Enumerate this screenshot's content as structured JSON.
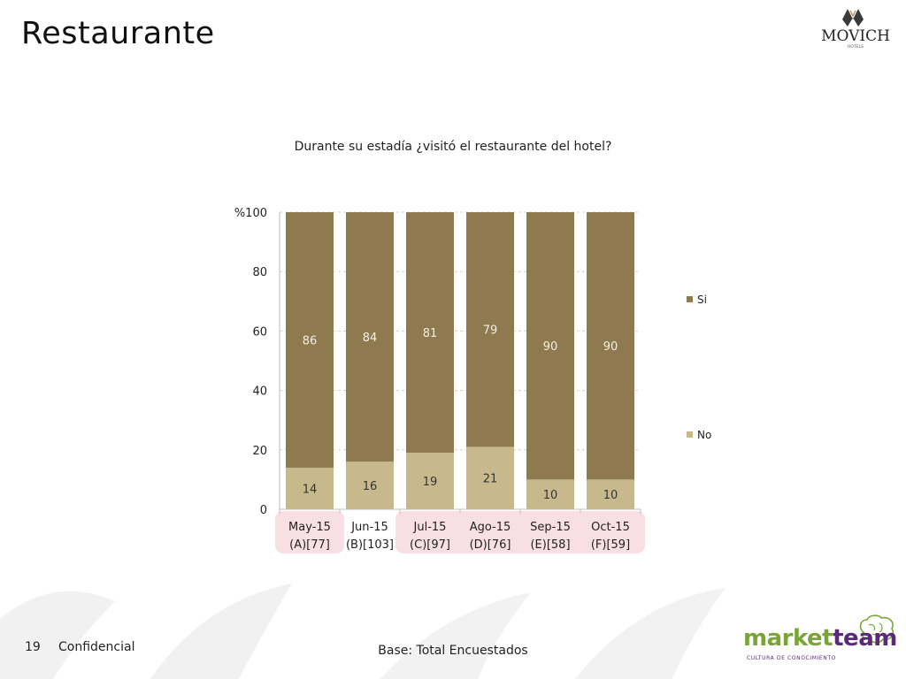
{
  "page": {
    "title": "Restaurante",
    "slide_number": "19",
    "confidential": "Confidencial",
    "base_note": "Base: Total Encuestados"
  },
  "logos": {
    "brand": "MOVICH",
    "brand_sub": "HOTELS",
    "partner_market": "market",
    "partner_team": "team",
    "partner_tagline": "CULTURA DE CONOCIMIENTO"
  },
  "colors": {
    "si": "#8f7a50",
    "no": "#c8b98d",
    "highlight": "#f7dfe4",
    "grid": "#d0d0d0"
  },
  "chart_data": {
    "type": "bar",
    "stacked": true,
    "title": "Durante su estadía ¿visitó el restaurante del hotel?",
    "ylabel": "%",
    "ylim": [
      0,
      100
    ],
    "yticks": [
      0,
      20,
      40,
      60,
      80,
      100
    ],
    "grid": true,
    "legend_position": "right",
    "categories": [
      "May-15",
      "Jun-15",
      "Jul-15",
      "Ago-15",
      "Sep-15",
      "Oct-15"
    ],
    "category_bases": [
      "(A)[77]",
      "(B)[103]",
      "(C)[97]",
      "(D)[76]",
      "(E)[58]",
      "(F)[59]"
    ],
    "highlighted_categories": [
      "May-15",
      "Jul-15",
      "Ago-15",
      "Sep-15",
      "Oct-15"
    ],
    "series": [
      {
        "name": "No",
        "values": [
          14,
          16,
          19,
          21,
          10,
          10
        ]
      },
      {
        "name": "Si",
        "values": [
          86,
          84,
          81,
          79,
          90,
          90
        ]
      }
    ]
  }
}
